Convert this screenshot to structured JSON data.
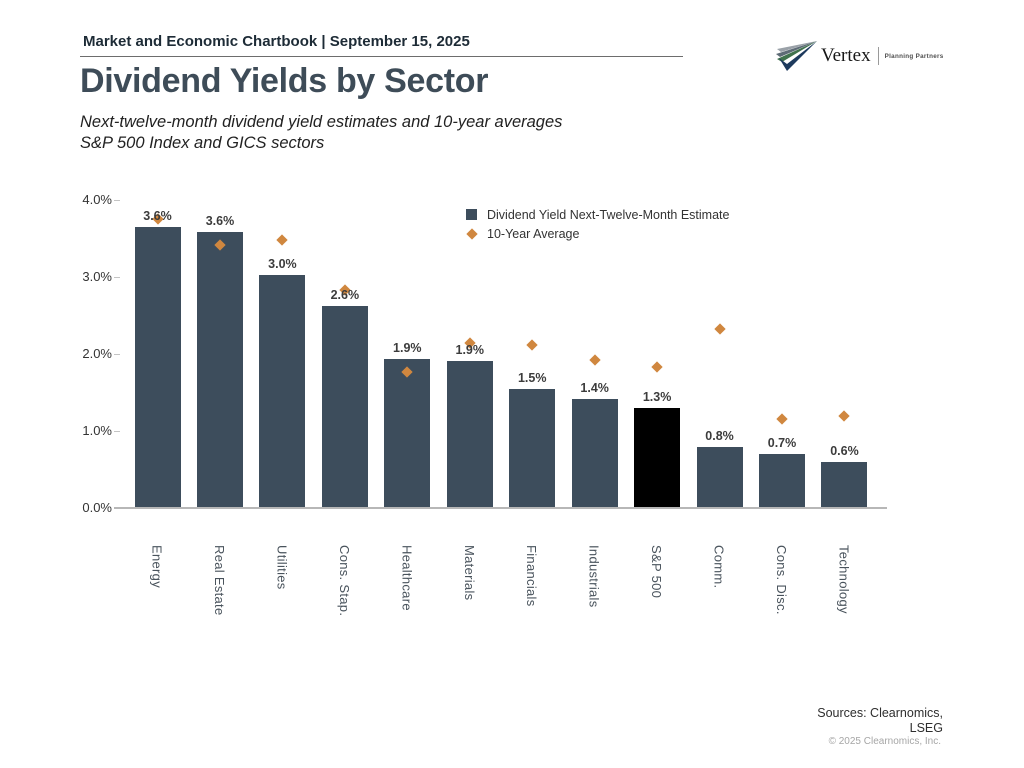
{
  "header": {
    "title": "Market and Economic Chartbook | September 15, 2025"
  },
  "logo": {
    "name": "Vertex",
    "tagline": "Planning Partners"
  },
  "title": "Dividend Yields by Sector",
  "subtitle": {
    "line1": "Next-twelve-month dividend yield estimates and 10-year averages",
    "line2": "S&P 500 Index and GICS sectors"
  },
  "legend": {
    "bars": "Dividend Yield Next-Twelve-Month Estimate",
    "diamonds": "10-Year Average"
  },
  "chart_data": {
    "type": "bar",
    "categories": [
      "Energy",
      "Real Estate",
      "Utilities",
      "Cons. Stap.",
      "Healthcare",
      "Materials",
      "Financials",
      "Industrials",
      "S&P 500",
      "Comm.",
      "Cons. Disc.",
      "Technology"
    ],
    "series": [
      {
        "name": "Dividend Yield Next-Twelve-Month Estimate",
        "type": "bar",
        "values": [
          3.65,
          3.58,
          3.02,
          2.62,
          1.93,
          1.91,
          1.55,
          1.42,
          1.3,
          0.79,
          0.7,
          0.6
        ]
      },
      {
        "name": "10-Year Average",
        "type": "scatter",
        "values": [
          3.75,
          3.42,
          3.48,
          2.83,
          1.77,
          2.14,
          2.12,
          1.92,
          1.83,
          2.33,
          1.16,
          1.19
        ]
      }
    ],
    "bar_labels": [
      "3.6%",
      "3.6%",
      "3.0%",
      "2.6%",
      "1.9%",
      "1.9%",
      "1.5%",
      "1.4%",
      "1.3%",
      "0.8%",
      "0.7%",
      "0.6%"
    ],
    "yticks": [
      "0.0%",
      "1.0%",
      "2.0%",
      "3.0%",
      "4.0%"
    ],
    "ylim": [
      0,
      4
    ],
    "highlight_index": 8,
    "colors": {
      "bar": "#3d4d5c",
      "highlight": "#000000",
      "diamond": "#d0873f"
    },
    "grid": false,
    "legend_position": "upper right"
  },
  "sources": {
    "line1": "Sources: Clearnomics,",
    "line2": "LSEG",
    "copyright": "© 2025 Clearnomics, Inc."
  }
}
